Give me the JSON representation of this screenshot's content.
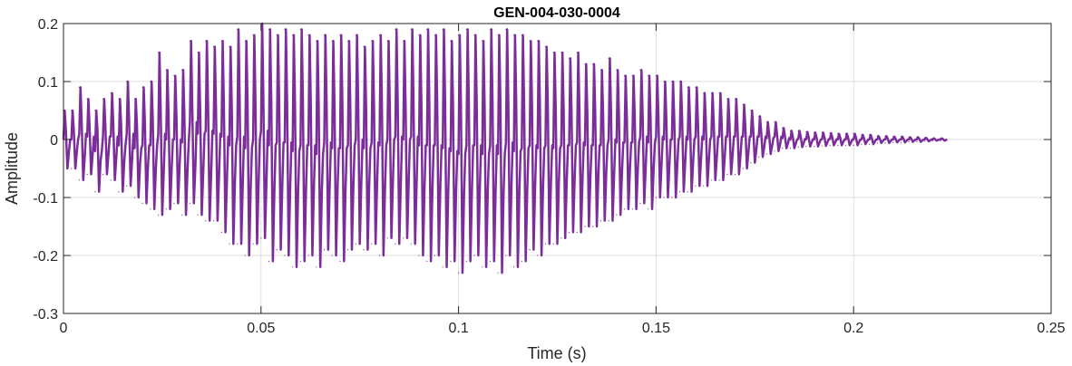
{
  "chart_data": {
    "type": "line",
    "title": "GEN-004-030-0004",
    "xlabel": "Time (s)",
    "ylabel": "Amplitude",
    "xlim": [
      0,
      0.25
    ],
    "ylim": [
      -0.3,
      0.2
    ],
    "x_ticks": [
      0,
      0.05,
      0.1,
      0.15,
      0.2,
      0.25
    ],
    "x_tick_labels": [
      "0",
      "0.05",
      "0.1",
      "0.15",
      "0.2",
      "0.25"
    ],
    "y_ticks": [
      -0.3,
      -0.2,
      -0.1,
      0,
      0.1,
      0.2
    ],
    "y_tick_labels": [
      "-0.3",
      "-0.2",
      "-0.1",
      "0",
      "0.1",
      "0.2"
    ],
    "grid": true,
    "line_color": "#7b2d9a",
    "series": [
      {
        "x": [
          0.0,
          0.002,
          0.004,
          0.006,
          0.008,
          0.01,
          0.012,
          0.014,
          0.016,
          0.018,
          0.02,
          0.022,
          0.024,
          0.026,
          0.028,
          0.03,
          0.032,
          0.034,
          0.036,
          0.038,
          0.04,
          0.042,
          0.044,
          0.046,
          0.048,
          0.05,
          0.052,
          0.054,
          0.056,
          0.058,
          0.06,
          0.062,
          0.064,
          0.066,
          0.068,
          0.07,
          0.072,
          0.074,
          0.076,
          0.078,
          0.08,
          0.082,
          0.084,
          0.086,
          0.088,
          0.09,
          0.092,
          0.094,
          0.096,
          0.098,
          0.1,
          0.102,
          0.104,
          0.106,
          0.108,
          0.11,
          0.112,
          0.114,
          0.116,
          0.118,
          0.12,
          0.122,
          0.124,
          0.126,
          0.128,
          0.13,
          0.132,
          0.134,
          0.136,
          0.138,
          0.14,
          0.142,
          0.144,
          0.146,
          0.148,
          0.15,
          0.152,
          0.154,
          0.156,
          0.158,
          0.16,
          0.162,
          0.164,
          0.166,
          0.168,
          0.17,
          0.172,
          0.174,
          0.176,
          0.178,
          0.18,
          0.182,
          0.184,
          0.186,
          0.188,
          0.19,
          0.192,
          0.194,
          0.196,
          0.198,
          0.2,
          0.202,
          0.204,
          0.206,
          0.208,
          0.21,
          0.212,
          0.214,
          0.216,
          0.218,
          0.22,
          0.222
        ],
        "y_max": [
          0.05,
          0.05,
          0.09,
          0.07,
          0.05,
          0.07,
          0.08,
          0.07,
          0.1,
          0.07,
          0.09,
          0.1,
          0.15,
          0.12,
          0.11,
          0.12,
          0.17,
          0.15,
          0.17,
          0.16,
          0.17,
          0.16,
          0.19,
          0.17,
          0.18,
          0.2,
          0.19,
          0.18,
          0.19,
          0.18,
          0.19,
          0.18,
          0.17,
          0.18,
          0.17,
          0.18,
          0.17,
          0.18,
          0.16,
          0.17,
          0.18,
          0.17,
          0.19,
          0.17,
          0.19,
          0.18,
          0.19,
          0.18,
          0.19,
          0.17,
          0.18,
          0.19,
          0.18,
          0.17,
          0.19,
          0.18,
          0.19,
          0.18,
          0.18,
          0.17,
          0.17,
          0.16,
          0.15,
          0.15,
          0.14,
          0.15,
          0.13,
          0.13,
          0.12,
          0.14,
          0.12,
          0.11,
          0.11,
          0.12,
          0.11,
          0.11,
          0.1,
          0.1,
          0.1,
          0.09,
          0.09,
          0.08,
          0.08,
          0.08,
          0.07,
          0.07,
          0.06,
          0.05,
          0.04,
          0.03,
          0.03,
          0.02,
          0.015,
          0.015,
          0.013,
          0.012,
          0.012,
          0.011,
          0.01,
          0.01,
          0.01,
          0.008,
          0.008,
          0.006,
          0.006,
          0.005,
          0.005,
          0.004,
          0.004,
          0.003,
          0.002,
          0.002
        ],
        "y_min": [
          -0.05,
          -0.05,
          -0.07,
          -0.06,
          -0.09,
          -0.06,
          -0.07,
          -0.09,
          -0.08,
          -0.1,
          -0.11,
          -0.12,
          -0.13,
          -0.12,
          -0.11,
          -0.13,
          -0.11,
          -0.13,
          -0.14,
          -0.14,
          -0.16,
          -0.18,
          -0.18,
          -0.2,
          -0.18,
          -0.17,
          -0.21,
          -0.19,
          -0.2,
          -0.22,
          -0.21,
          -0.2,
          -0.22,
          -0.19,
          -0.2,
          -0.21,
          -0.19,
          -0.18,
          -0.19,
          -0.18,
          -0.2,
          -0.17,
          -0.18,
          -0.17,
          -0.18,
          -0.2,
          -0.21,
          -0.2,
          -0.22,
          -0.21,
          -0.23,
          -0.21,
          -0.2,
          -0.22,
          -0.21,
          -0.23,
          -0.2,
          -0.22,
          -0.21,
          -0.19,
          -0.2,
          -0.18,
          -0.18,
          -0.17,
          -0.16,
          -0.16,
          -0.15,
          -0.15,
          -0.14,
          -0.14,
          -0.13,
          -0.12,
          -0.12,
          -0.11,
          -0.12,
          -0.1,
          -0.1,
          -0.1,
          -0.09,
          -0.09,
          -0.08,
          -0.08,
          -0.07,
          -0.07,
          -0.06,
          -0.06,
          -0.05,
          -0.04,
          -0.03,
          -0.025,
          -0.02,
          -0.015,
          -0.015,
          -0.013,
          -0.012,
          -0.012,
          -0.011,
          -0.01,
          -0.01,
          -0.01,
          -0.01,
          -0.008,
          -0.008,
          -0.006,
          -0.006,
          -0.005,
          -0.005,
          -0.004,
          -0.004,
          -0.003,
          -0.002,
          -0.002
        ]
      }
    ]
  }
}
